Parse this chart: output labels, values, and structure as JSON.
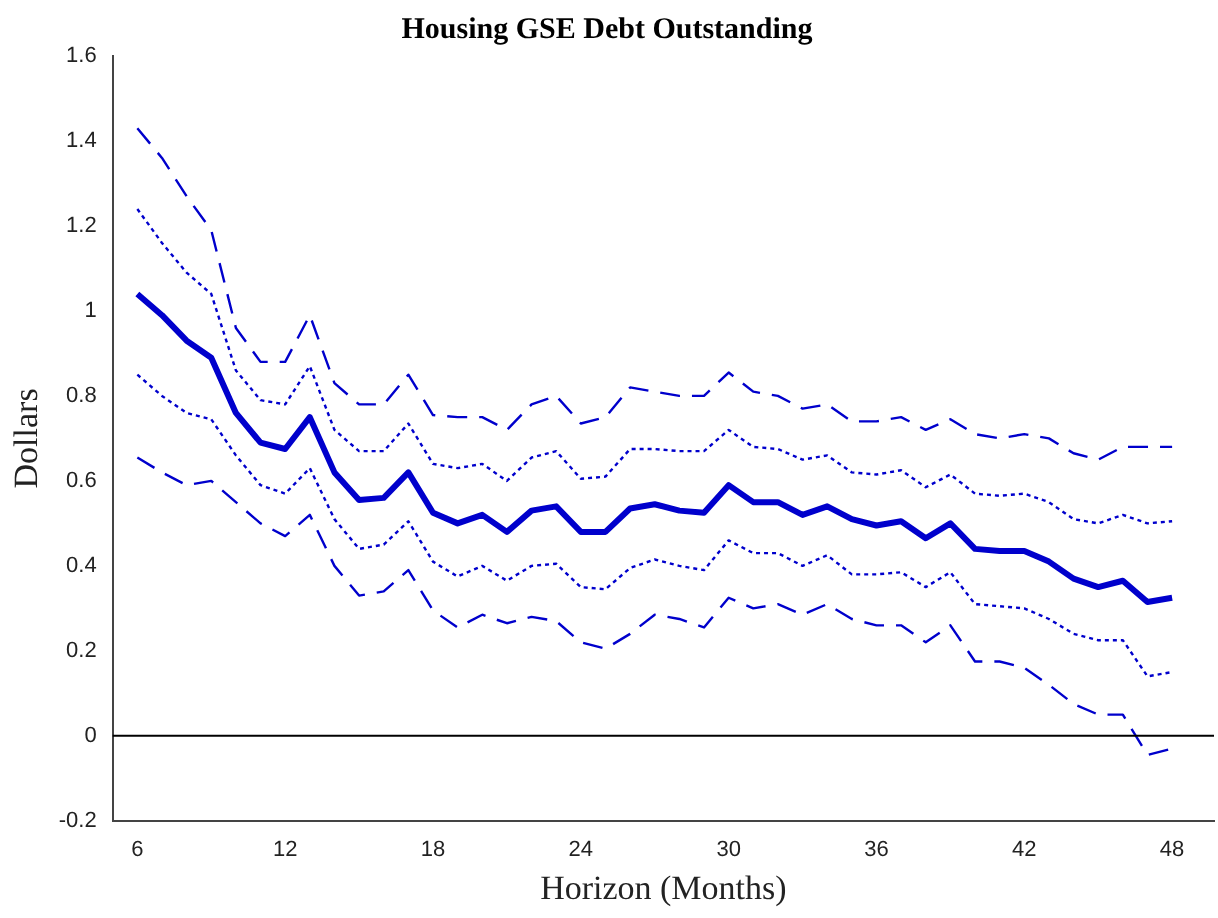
{
  "chart_data": {
    "type": "line",
    "title": "Housing GSE Debt Outstanding",
    "xlabel": "Horizon (Months)",
    "ylabel": "Dollars",
    "x": [
      6,
      7,
      8,
      9,
      10,
      11,
      12,
      13,
      14,
      15,
      16,
      17,
      18,
      19,
      20,
      21,
      22,
      23,
      24,
      25,
      26,
      27,
      28,
      29,
      30,
      31,
      32,
      33,
      34,
      35,
      36,
      37,
      38,
      39,
      40,
      41,
      42,
      43,
      44,
      45,
      46,
      47,
      48
    ],
    "xlim": [
      5,
      49.7
    ],
    "xticks": [
      6,
      12,
      18,
      24,
      30,
      36,
      42,
      48
    ],
    "ylim": [
      -0.2,
      1.6
    ],
    "yticks": [
      -0.2,
      0,
      0.2,
      0.4,
      0.6,
      0.8,
      1,
      1.2,
      1.4,
      1.6
    ],
    "grid": false,
    "legend": false,
    "marker": "none",
    "ref_lines": [
      {
        "axis": "y",
        "value": 0,
        "color": "#000000",
        "line_style": "solid"
      }
    ],
    "series": [
      {
        "color": "#0000cc",
        "line_style": "dashed",
        "values": [
          1.43,
          1.36,
          1.27,
          1.19,
          0.96,
          0.88,
          0.88,
          0.99,
          0.83,
          0.78,
          0.78,
          0.85,
          0.755,
          0.75,
          0.75,
          0.72,
          0.78,
          0.8,
          0.735,
          0.75,
          0.82,
          0.81,
          0.8,
          0.8,
          0.855,
          0.81,
          0.8,
          0.77,
          0.78,
          0.74,
          0.74,
          0.75,
          0.72,
          0.745,
          0.71,
          0.7,
          0.71,
          0.7,
          0.665,
          0.65,
          0.68,
          0.68,
          0.68
        ]
      },
      {
        "color": "#0000cc",
        "line_style": "dotted",
        "values": [
          1.24,
          1.16,
          1.09,
          1.04,
          0.86,
          0.79,
          0.78,
          0.87,
          0.72,
          0.67,
          0.67,
          0.735,
          0.64,
          0.63,
          0.64,
          0.6,
          0.655,
          0.67,
          0.605,
          0.61,
          0.675,
          0.675,
          0.67,
          0.67,
          0.72,
          0.68,
          0.675,
          0.65,
          0.66,
          0.62,
          0.615,
          0.625,
          0.585,
          0.615,
          0.57,
          0.565,
          0.57,
          0.55,
          0.51,
          0.5,
          0.52,
          0.5,
          0.505
        ]
      },
      {
        "color": "#0000cc",
        "line_style": "solid",
        "values": [
          1.04,
          0.99,
          0.93,
          0.89,
          0.76,
          0.69,
          0.675,
          0.75,
          0.62,
          0.555,
          0.56,
          0.62,
          0.525,
          0.5,
          0.52,
          0.48,
          0.53,
          0.54,
          0.48,
          0.48,
          0.535,
          0.545,
          0.53,
          0.525,
          0.59,
          0.55,
          0.55,
          0.52,
          0.54,
          0.51,
          0.495,
          0.505,
          0.465,
          0.5,
          0.44,
          0.435,
          0.435,
          0.41,
          0.37,
          0.35,
          0.365,
          0.315,
          0.325
        ]
      },
      {
        "color": "#0000cc",
        "line_style": "dotted",
        "values": [
          0.85,
          0.8,
          0.76,
          0.745,
          0.66,
          0.59,
          0.57,
          0.63,
          0.51,
          0.44,
          0.45,
          0.505,
          0.41,
          0.375,
          0.4,
          0.365,
          0.4,
          0.405,
          0.35,
          0.345,
          0.395,
          0.415,
          0.4,
          0.39,
          0.46,
          0.43,
          0.43,
          0.4,
          0.425,
          0.38,
          0.38,
          0.385,
          0.35,
          0.385,
          0.31,
          0.305,
          0.3,
          0.275,
          0.24,
          0.225,
          0.225,
          0.14,
          0.15
        ]
      },
      {
        "color": "#0000cc",
        "line_style": "dashed",
        "values": [
          0.655,
          0.62,
          0.59,
          0.6,
          0.55,
          0.5,
          0.47,
          0.52,
          0.4,
          0.33,
          0.34,
          0.39,
          0.295,
          0.255,
          0.285,
          0.265,
          0.28,
          0.27,
          0.22,
          0.205,
          0.24,
          0.285,
          0.275,
          0.255,
          0.325,
          0.3,
          0.31,
          0.285,
          0.31,
          0.275,
          0.26,
          0.26,
          0.22,
          0.26,
          0.175,
          0.175,
          0.16,
          0.12,
          0.075,
          0.05,
          0.05,
          -0.045,
          -0.03
        ]
      }
    ]
  }
}
